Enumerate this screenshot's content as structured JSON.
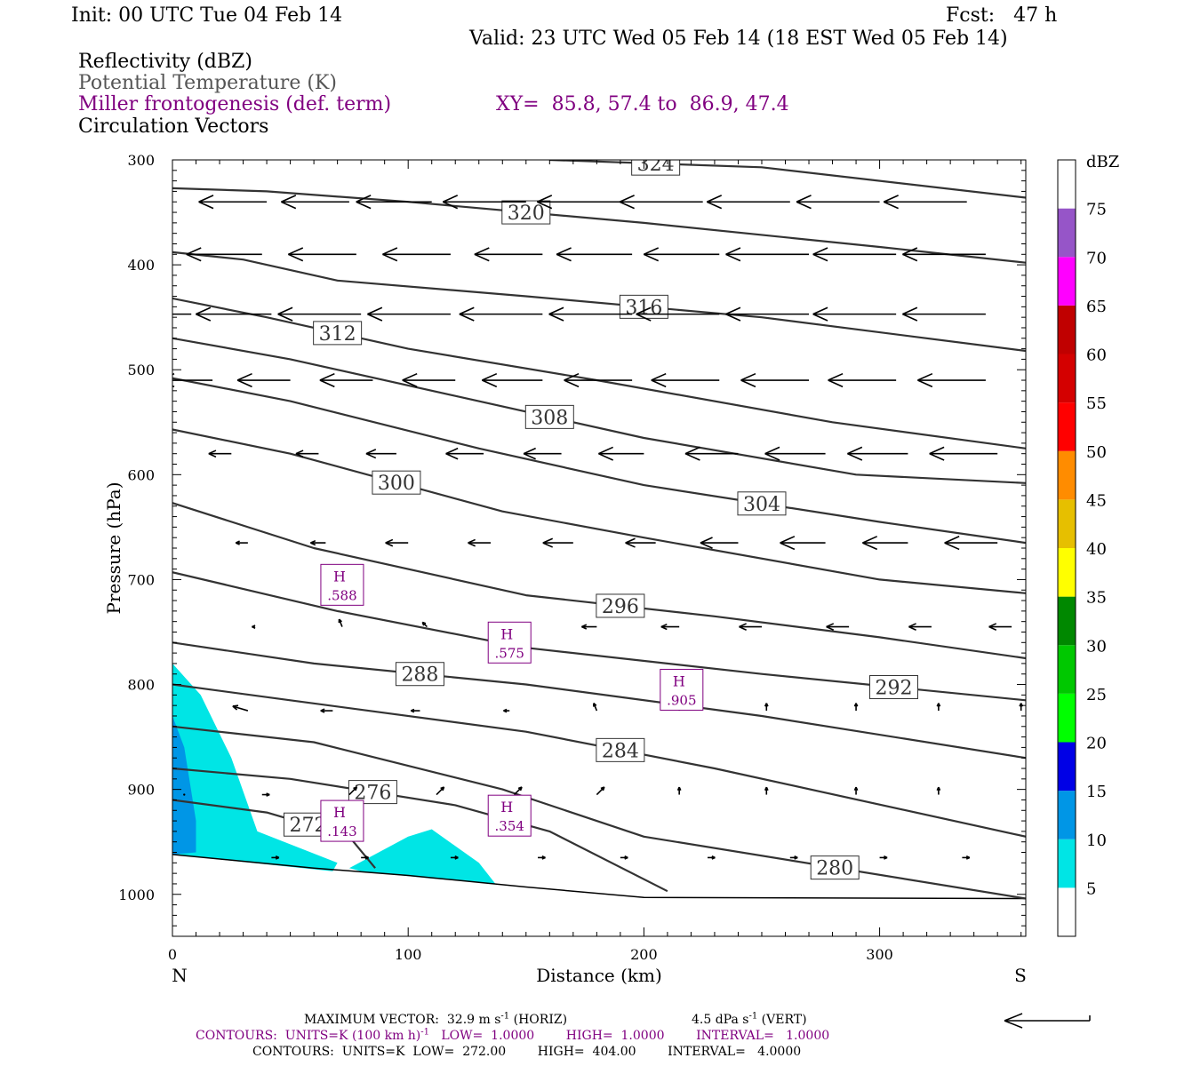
{
  "header": {
    "init": "Init: 00 UTC Tue 04 Feb 14",
    "fcst": "Fcst:   47 h",
    "valid": "Valid: 23 UTC Wed 05 Feb 14 (18 EST Wed 05 Feb 14)",
    "fields": [
      {
        "text": "Reflectivity (dBZ)",
        "color": "#000000"
      },
      {
        "text": "Potential Temperature (K)",
        "color": "#555555"
      },
      {
        "text": "Miller frontogenesis (def. term)",
        "color": "#800080"
      },
      {
        "text": "Circulation Vectors",
        "color": "#000000"
      }
    ],
    "xy": "XY=  85.8, 57.4 to  86.9, 47.4"
  },
  "chart_data": {
    "type": "cross-section",
    "xlabel": "Distance (km)",
    "ylabel": "Pressure (hPa)",
    "xlim": [
      0,
      362
    ],
    "ylim": [
      1040,
      300
    ],
    "x_ticks": [
      "0",
      "100",
      "200",
      "300"
    ],
    "y_ticks": [
      "300",
      "400",
      "500",
      "600",
      "700",
      "800",
      "900",
      "1000"
    ],
    "left_end": "N",
    "right_end": "S",
    "theta_contours": [
      {
        "value": 324,
        "points": [
          [
            160,
            300
          ],
          [
            250,
            307
          ],
          [
            362,
            336
          ]
        ]
      },
      {
        "value": 320,
        "points": [
          [
            0,
            327
          ],
          [
            40,
            330
          ],
          [
            100,
            340
          ],
          [
            200,
            360
          ],
          [
            300,
            383
          ],
          [
            362,
            398
          ]
        ]
      },
      {
        "value": 316,
        "points": [
          [
            0,
            388
          ],
          [
            30,
            395
          ],
          [
            70,
            415
          ],
          [
            150,
            430
          ],
          [
            250,
            450
          ],
          [
            362,
            482
          ]
        ]
      },
      {
        "value": 312,
        "points": [
          [
            0,
            432
          ],
          [
            40,
            450
          ],
          [
            100,
            480
          ],
          [
            180,
            510
          ],
          [
            280,
            550
          ],
          [
            362,
            575
          ]
        ]
      },
      {
        "value": 308,
        "points": [
          [
            0,
            470
          ],
          [
            50,
            490
          ],
          [
            120,
            525
          ],
          [
            200,
            565
          ],
          [
            290,
            600
          ],
          [
            362,
            608
          ]
        ]
      },
      {
        "value": 304,
        "points": [
          [
            0,
            508
          ],
          [
            50,
            530
          ],
          [
            130,
            575
          ],
          [
            200,
            610
          ],
          [
            300,
            645
          ],
          [
            362,
            665
          ]
        ]
      },
      {
        "value": 300,
        "points": [
          [
            0,
            557
          ],
          [
            50,
            580
          ],
          [
            140,
            635
          ],
          [
            200,
            660
          ],
          [
            300,
            700
          ],
          [
            362,
            713
          ]
        ]
      },
      {
        "value": 296,
        "points": [
          [
            0,
            627
          ],
          [
            60,
            670
          ],
          [
            150,
            715
          ],
          [
            230,
            735
          ],
          [
            300,
            755
          ],
          [
            362,
            775
          ]
        ]
      },
      {
        "value": 292,
        "points": [
          [
            0,
            693
          ],
          [
            70,
            730
          ],
          [
            150,
            765
          ],
          [
            250,
            790
          ],
          [
            362,
            815
          ]
        ]
      },
      {
        "value": 288,
        "points": [
          [
            0,
            760
          ],
          [
            60,
            780
          ],
          [
            150,
            800
          ],
          [
            250,
            830
          ],
          [
            362,
            870
          ]
        ]
      },
      {
        "value": 284,
        "points": [
          [
            0,
            800
          ],
          [
            50,
            815
          ],
          [
            150,
            845
          ],
          [
            230,
            880
          ],
          [
            362,
            945
          ]
        ]
      },
      {
        "value": 280,
        "points": [
          [
            0,
            840
          ],
          [
            60,
            855
          ],
          [
            140,
            900
          ],
          [
            200,
            945
          ],
          [
            362,
            1004
          ]
        ]
      },
      {
        "value": 276,
        "points": [
          [
            0,
            880
          ],
          [
            50,
            890
          ],
          [
            120,
            915
          ],
          [
            160,
            940
          ],
          [
            210,
            997
          ]
        ]
      },
      {
        "value": 272,
        "points": [
          [
            0,
            910
          ],
          [
            40,
            922
          ],
          [
            75,
            945
          ],
          [
            86,
            975
          ]
        ]
      }
    ],
    "frontogenesis_maxima": [
      {
        "label": "H",
        "value": ".588",
        "x": 72,
        "p": 705
      },
      {
        "label": "H",
        "value": ".575",
        "x": 143,
        "p": 760
      },
      {
        "label": "H",
        "value": ".905",
        "x": 216,
        "p": 805
      },
      {
        "label": "H",
        "value": ".143",
        "x": 72,
        "p": 930
      },
      {
        "label": "H",
        "value": ".354",
        "x": 143,
        "p": 925
      }
    ],
    "reflectivity_regions": [
      {
        "dbz": 5,
        "color": "#00e5e5",
        "points": [
          [
            0,
            780
          ],
          [
            12,
            810
          ],
          [
            25,
            870
          ],
          [
            36,
            940
          ],
          [
            70,
            970
          ],
          [
            68,
            978
          ],
          [
            0,
            962
          ]
        ]
      },
      {
        "dbz": 5,
        "color": "#00e5e5",
        "points": [
          [
            75,
            975
          ],
          [
            100,
            945
          ],
          [
            110,
            938
          ],
          [
            130,
            970
          ],
          [
            137,
            990
          ],
          [
            110,
            985
          ],
          [
            80,
            978
          ]
        ]
      },
      {
        "dbz": 10,
        "color": "#0096e6",
        "points": [
          [
            0,
            830
          ],
          [
            5,
            860
          ],
          [
            10,
            930
          ],
          [
            10,
            960
          ],
          [
            0,
            962
          ]
        ]
      }
    ],
    "terrain": {
      "points": [
        [
          0,
          962
        ],
        [
          60,
          975
        ],
        [
          100,
          982
        ],
        [
          150,
          993
        ],
        [
          200,
          1003
        ],
        [
          362,
          1004
        ]
      ]
    },
    "vectors": {
      "levels": [
        {
          "p": 340,
          "x": [
            0,
            40,
            75,
            110,
            150,
            190,
            225,
            262,
            300,
            337
          ],
          "u": [
            -45,
            -45,
            -45,
            -50,
            -55,
            -55,
            -55,
            -55,
            -55,
            -55
          ],
          "w": [
            0,
            0,
            0,
            0,
            0,
            0,
            0,
            0,
            0,
            0
          ]
        },
        {
          "p": 390,
          "x": [
            0,
            38,
            78,
            118,
            157,
            195,
            232,
            270,
            307,
            345
          ],
          "u": [
            -60,
            -50,
            -45,
            -45,
            -45,
            -50,
            -50,
            -55,
            -55,
            -55
          ],
          "w": [
            0,
            0,
            0,
            0,
            0,
            0,
            0,
            0,
            0,
            0
          ]
        },
        {
          "p": 447,
          "x": [
            8,
            42,
            80,
            118,
            157,
            195,
            232,
            270,
            307,
            345
          ],
          "u": [
            -35,
            -50,
            -55,
            -55,
            -55,
            -55,
            -55,
            -55,
            -55,
            -55
          ],
          "w": [
            0,
            0,
            0,
            0,
            0,
            0,
            0,
            0,
            0,
            0
          ]
        },
        {
          "p": 510,
          "x": [
            17,
            50,
            85,
            120,
            157,
            195,
            232,
            270,
            307,
            345
          ],
          "u": [
            -35,
            -35,
            -35,
            -35,
            -40,
            -45,
            -45,
            -45,
            -45,
            -45
          ],
          "w": [
            0,
            0,
            0,
            0,
            0,
            0,
            0,
            0,
            0,
            0
          ]
        },
        {
          "p": 580,
          "x": [
            25,
            62,
            95,
            132,
            165,
            200,
            240,
            277,
            312,
            350
          ],
          "u": [
            -15,
            -15,
            -20,
            -25,
            -25,
            -30,
            -35,
            -40,
            -40,
            -45
          ],
          "w": [
            0,
            0,
            0,
            0,
            0,
            0,
            0,
            0,
            0,
            0
          ]
        },
        {
          "p": 665,
          "x": [
            32,
            65,
            100,
            135,
            170,
            205,
            240,
            277,
            312,
            350
          ],
          "u": [
            -8,
            -10,
            -15,
            -15,
            -20,
            -20,
            -25,
            -30,
            -30,
            -35
          ],
          "w": [
            0,
            0,
            0,
            0,
            0,
            0,
            0,
            0,
            0,
            0
          ]
        },
        {
          "p": 745,
          "x": [
            35,
            72,
            108,
            145,
            180,
            215,
            250,
            287,
            322,
            356
          ],
          "u": [
            -2,
            -2,
            -3,
            -5,
            -10,
            -12,
            -15,
            -15,
            -15,
            -15
          ],
          "w": [
            0,
            -5,
            -3,
            0,
            0,
            0,
            0,
            0,
            0,
            0
          ]
        },
        {
          "p": 825,
          "x": [
            32,
            68,
            105,
            143,
            180,
            215,
            252,
            290,
            325,
            360
          ],
          "u": [
            -10,
            -8,
            -6,
            -4,
            -2,
            0,
            0,
            0,
            0,
            0
          ],
          "w": [
            -3,
            0,
            0,
            0,
            -5,
            -5,
            -5,
            -5,
            -5,
            -5
          ]
        },
        {
          "p": 905,
          "x": [
            5,
            38,
            75,
            112,
            145,
            180,
            215,
            252,
            290,
            325
          ],
          "u": [
            0,
            5,
            5,
            5,
            5,
            5,
            0,
            0,
            0,
            0
          ],
          "w": [
            0,
            0,
            -5,
            -5,
            -5,
            -5,
            -5,
            -5,
            -5,
            -5
          ]
        },
        {
          "p": 965,
          "x": [
            0,
            42,
            80,
            118,
            155,
            190,
            227,
            262,
            300,
            335
          ],
          "u": [
            -5,
            5,
            5,
            5,
            5,
            5,
            5,
            5,
            5,
            5
          ],
          "w": [
            0,
            0,
            0,
            0,
            0,
            0,
            0,
            0,
            0,
            0
          ]
        }
      ]
    },
    "colorbar": {
      "unit": "dBZ",
      "labels": [
        "5",
        "10",
        "15",
        "20",
        "25",
        "30",
        "35",
        "40",
        "45",
        "50",
        "55",
        "60",
        "65",
        "70",
        "75"
      ],
      "colors": [
        "#ffffff",
        "#00e5e5",
        "#0096e6",
        "#0000e6",
        "#00ff00",
        "#00c800",
        "#008800",
        "#ffff00",
        "#e6bf00",
        "#ff8c00",
        "#ff0000",
        "#d40000",
        "#c00000",
        "#ff00ff",
        "#9655c8",
        "#ffffff"
      ]
    }
  },
  "footer": {
    "max_vector": "MAXIMUM VECTOR:  32.9 m s",
    "horiz": "(HORIZ)",
    "vert_val": "4.5 dPa s",
    "vert": "(VERT)",
    "sup": "-1",
    "contours1_a": "CONTOURS:  UNITS=K (100 km h)",
    "contours1_b": "   LOW=  1.0000        HIGH=  1.0000        INTERVAL=   1.0000",
    "contours2": "CONTOURS:  UNITS=K  LOW=  272.00        HIGH=  404.00        INTERVAL=   4.0000"
  }
}
